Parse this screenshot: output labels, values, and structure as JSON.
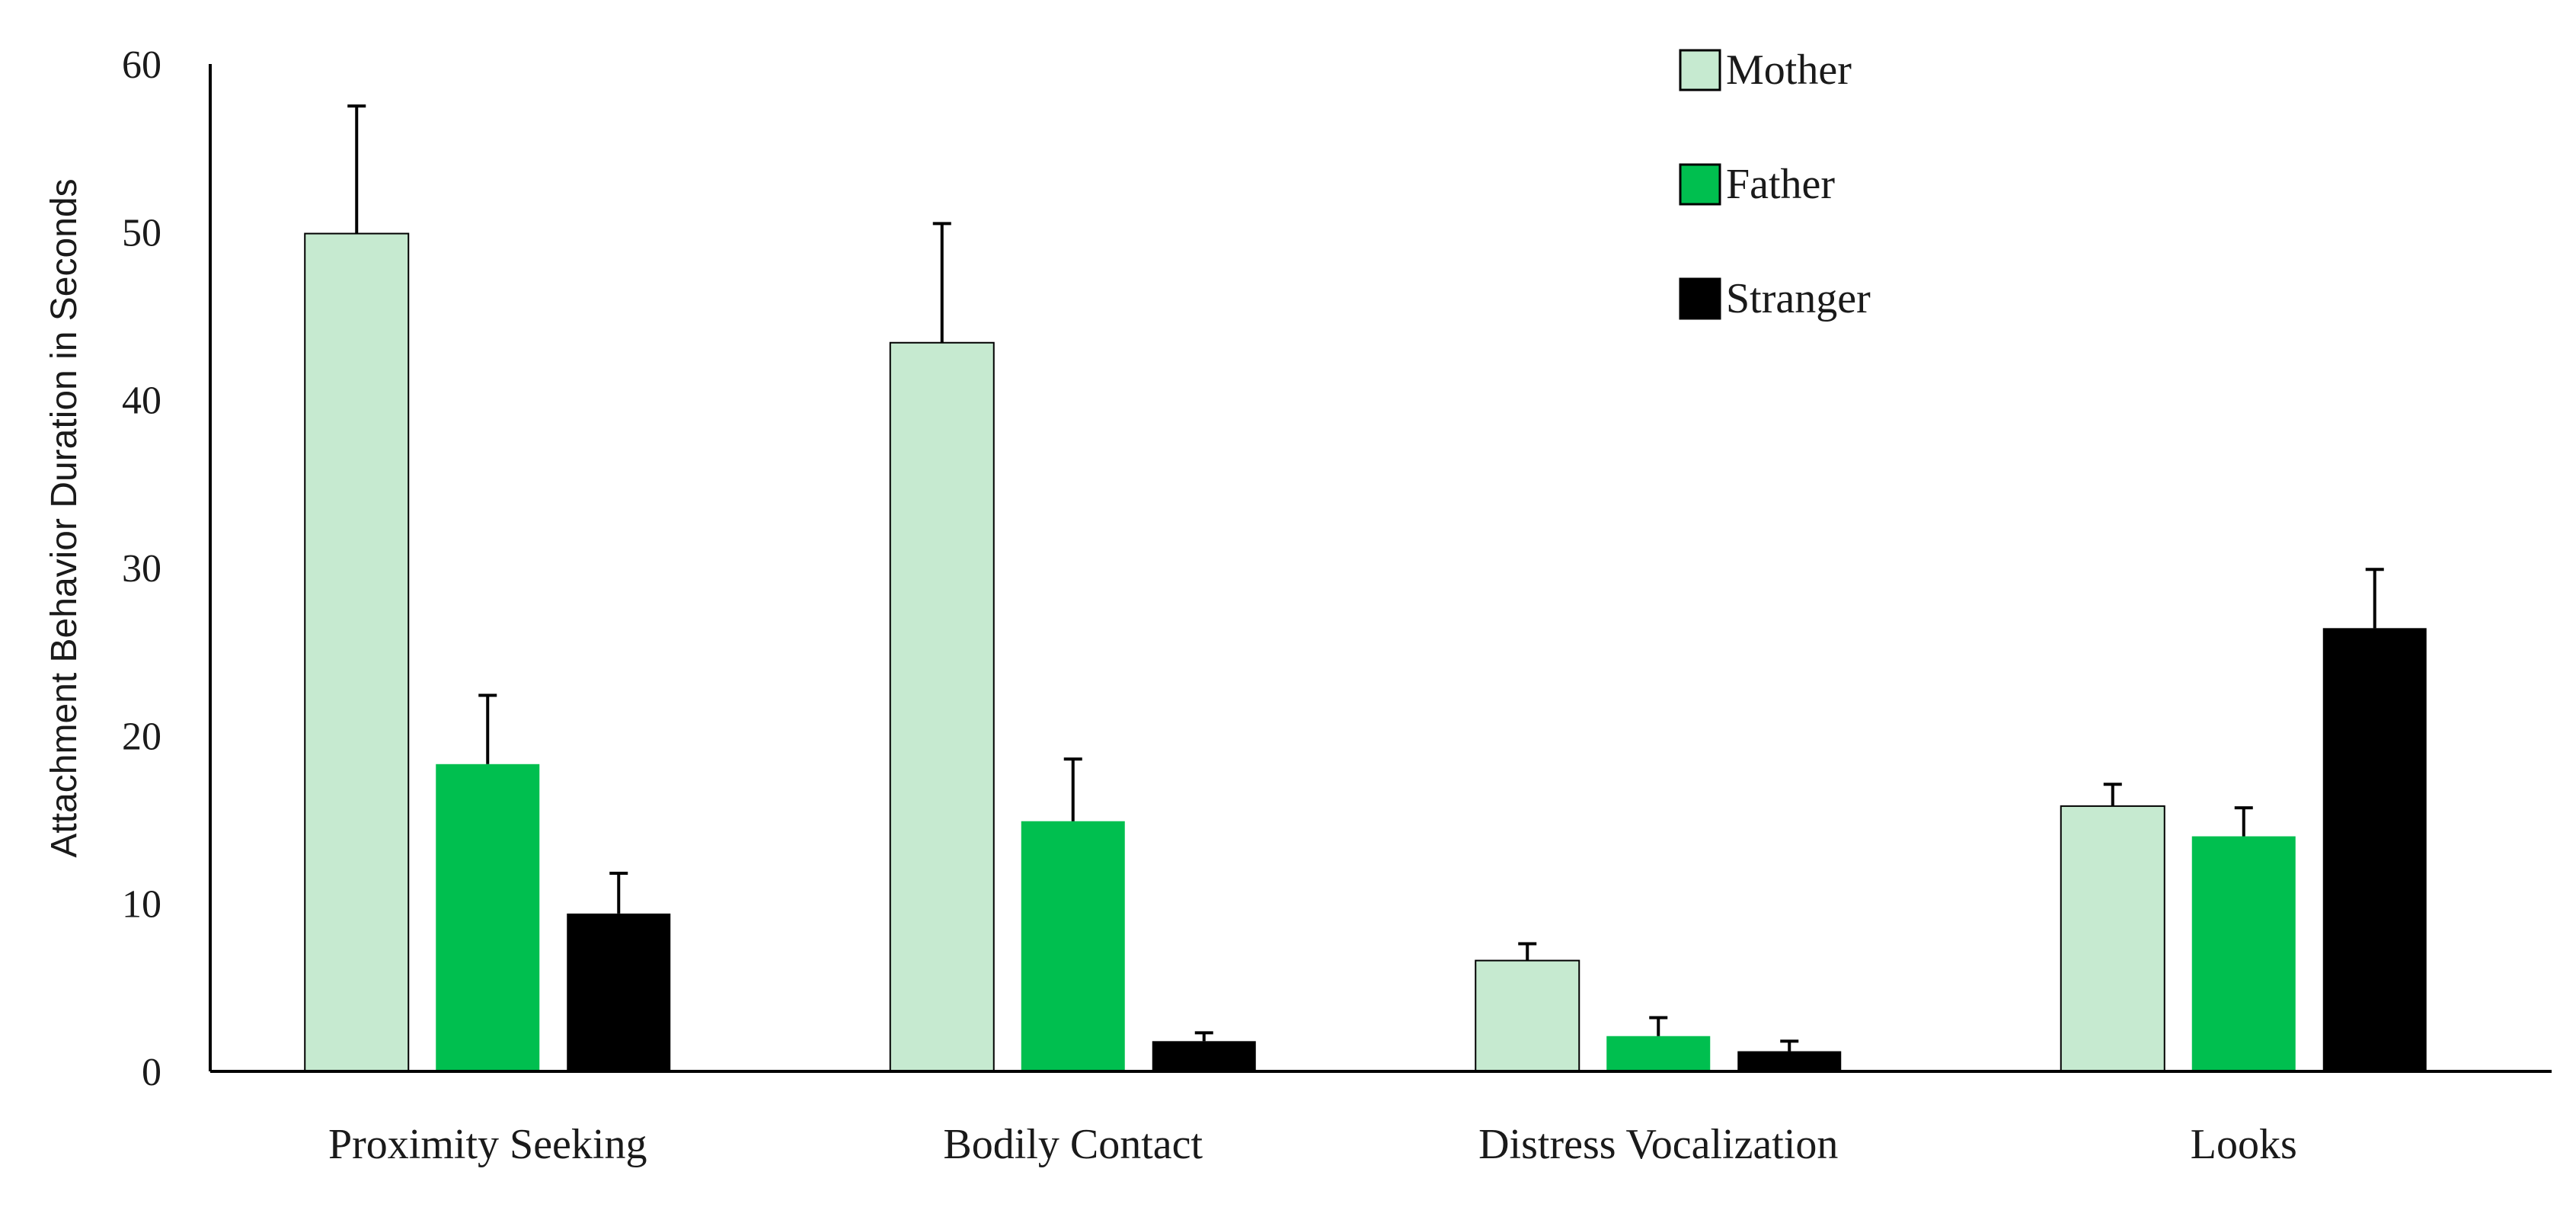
{
  "chart_data": {
    "type": "bar",
    "title": "",
    "xlabel": "",
    "ylabel": "Attachment Behavior Duration in Seconds",
    "ylim": [
      0,
      60
    ],
    "yticks": [
      "0",
      "10",
      "20",
      "30",
      "40",
      "50",
      "60"
    ],
    "categories": [
      "Proximity Seeking",
      "Bodily Contact",
      "Distress Vocalization",
      "Looks"
    ],
    "series": [
      {
        "name": "Mother",
        "color": "#c6ead0",
        "values": [
          49.9,
          43.4,
          6.6,
          15.8
        ],
        "errors": [
          7.6,
          7.1,
          1.0,
          1.3
        ]
      },
      {
        "name": "Father",
        "color": "#00bf4f",
        "values": [
          18.3,
          14.9,
          2.1,
          14.0
        ],
        "errors": [
          4.1,
          3.7,
          1.1,
          1.7
        ]
      },
      {
        "name": "Stranger",
        "color": "#000000",
        "values": [
          9.4,
          1.8,
          1.2,
          26.4
        ],
        "errors": [
          2.4,
          0.5,
          0.6,
          3.5
        ]
      }
    ],
    "legend_position": "top-center",
    "grid": false
  }
}
